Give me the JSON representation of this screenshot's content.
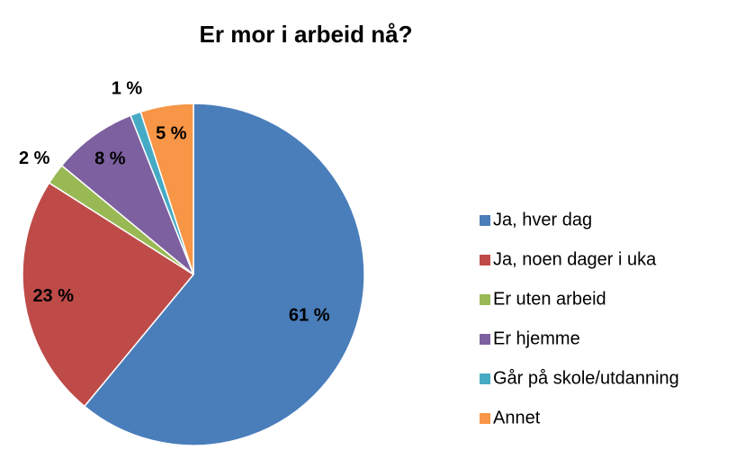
{
  "chart_data": {
    "type": "pie",
    "title": "Er mor i arbeid nå?",
    "categories": [
      "Ja, hver dag",
      "Ja, noen dager i uka",
      "Er uten arbeid",
      "Er hjemme",
      "Går på skole/utdanning",
      "Annet"
    ],
    "values": [
      61,
      23,
      2,
      8,
      1,
      5
    ],
    "value_labels": [
      "61 %",
      "23 %",
      "2 %",
      "8 %",
      "1 %",
      "5 %"
    ],
    "colors": [
      "#4a7ebb",
      "#be4b48",
      "#98b954",
      "#7d60a0",
      "#46aac5",
      "#f79646"
    ],
    "legend": "right"
  }
}
